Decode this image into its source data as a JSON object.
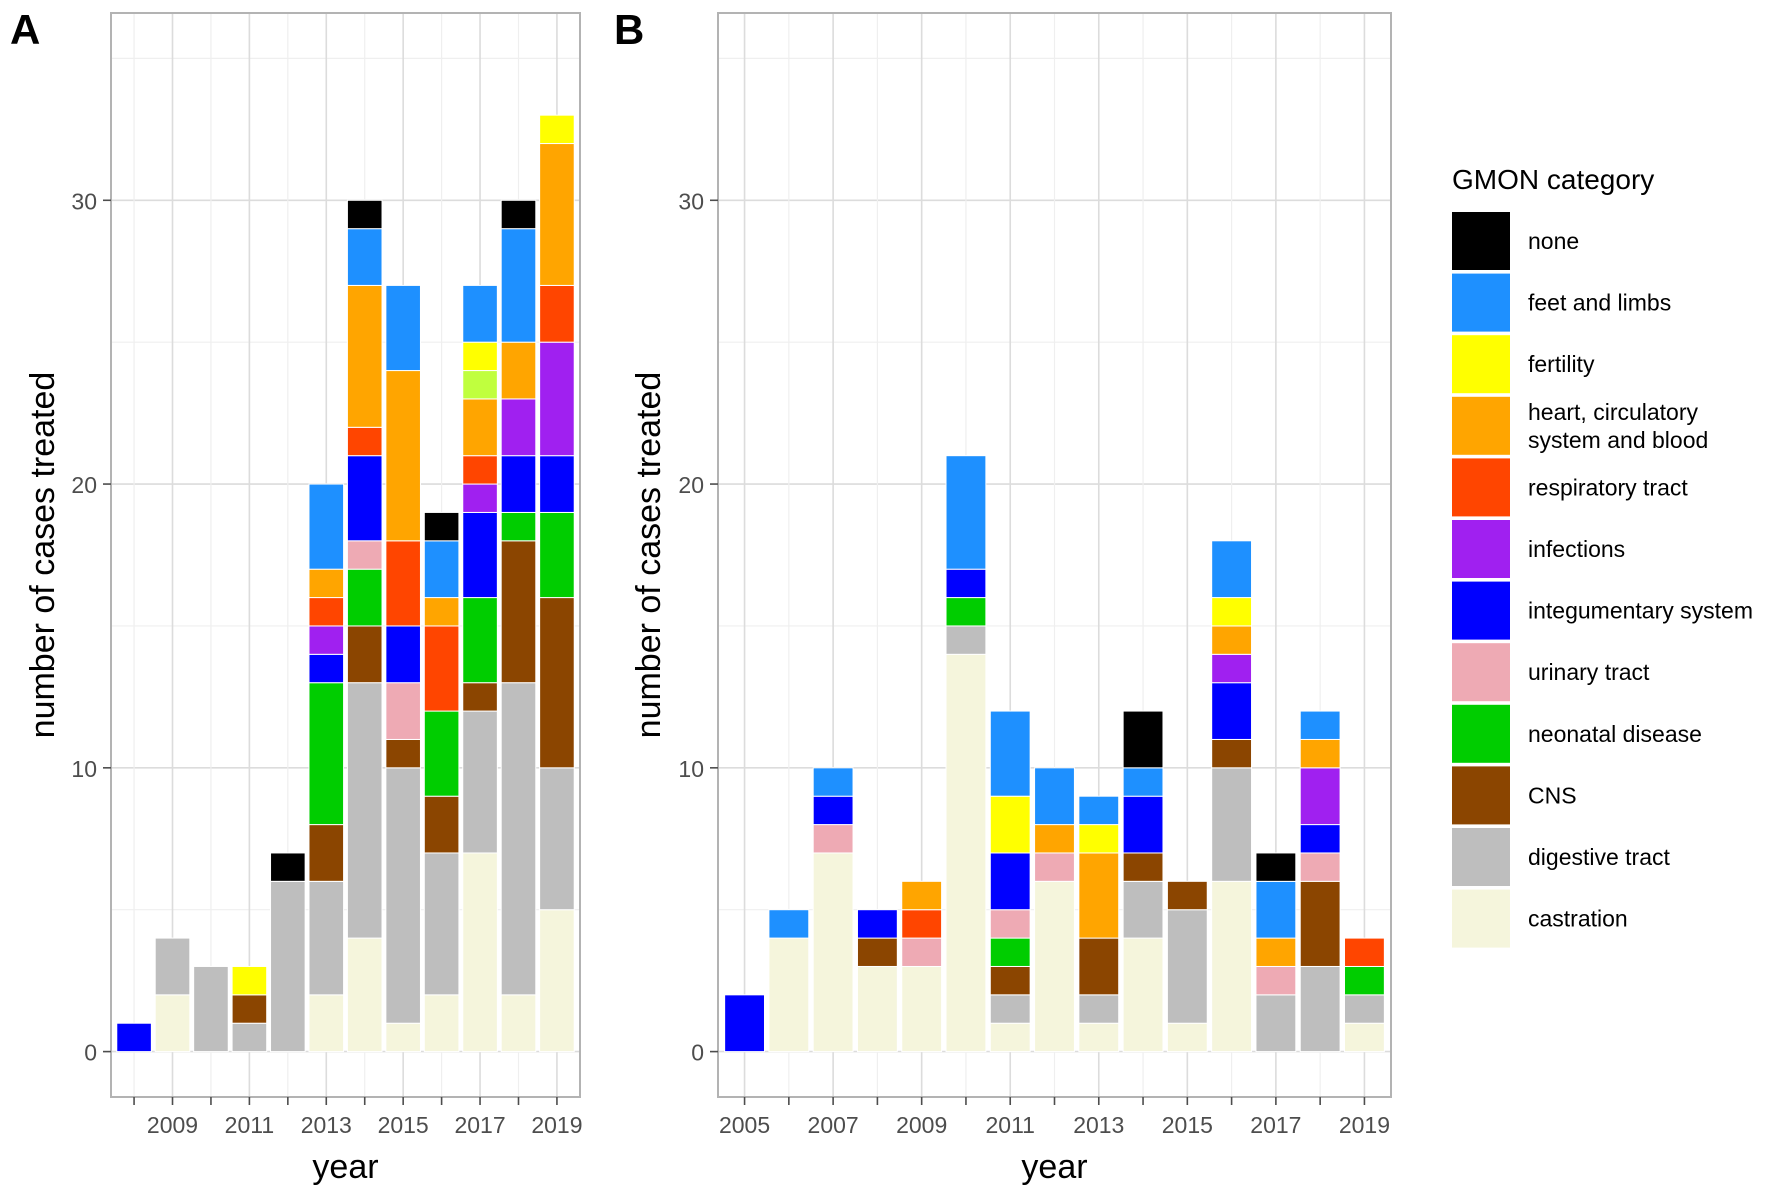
{
  "figure": {
    "panel_a_letter": "A",
    "panel_b_letter": "B"
  },
  "legend": {
    "title": "GMON category",
    "categories": [
      {
        "key": "none",
        "label": "none",
        "color": "#000000"
      },
      {
        "key": "feet",
        "label": "feet and limbs",
        "color": "#1e90ff"
      },
      {
        "key": "fertility",
        "label": "fertility",
        "color": "#ffff00"
      },
      {
        "key": "heart",
        "label": "heart, circulatory\nsystem and blood",
        "color": "#ffa500"
      },
      {
        "key": "resp",
        "label": "respiratory tract",
        "color": "#ff4500"
      },
      {
        "key": "infections",
        "label": "infections",
        "color": "#a020f0"
      },
      {
        "key": "integ",
        "label": "integumentary system",
        "color": "#0000ff"
      },
      {
        "key": "urinary",
        "label": "urinary tract",
        "color": "#eeaab4"
      },
      {
        "key": "neonatal",
        "label": "neonatal disease",
        "color": "#00cd00"
      },
      {
        "key": "cns",
        "label": "CNS",
        "color": "#8b4500"
      },
      {
        "key": "digestive",
        "label": "digestive tract",
        "color": "#bebebe"
      },
      {
        "key": "castration",
        "label": "castration",
        "color": "#f5f5dc"
      }
    ],
    "extra_colors": {
      "chartreuse": "#c0ff3e"
    }
  },
  "chart_data": [
    {
      "panel": "A",
      "type": "bar",
      "stacked": true,
      "xlabel": "year",
      "ylabel": "number of cases treated",
      "xlim": [
        2007.4,
        2019.6
      ],
      "ylim": [
        -1.6,
        36.6
      ],
      "x_ticks": [
        2009,
        2011,
        2013,
        2015,
        2017,
        2019
      ],
      "y_ticks": [
        0,
        10,
        20,
        30
      ],
      "stack_order": [
        "castration",
        "digestive",
        "cns",
        "neonatal",
        "urinary",
        "integ",
        "infections",
        "resp",
        "heart",
        "chartreuse",
        "fertility",
        "feet",
        "none"
      ],
      "bars": [
        {
          "x": 2008,
          "segments": {
            "integ": 1
          }
        },
        {
          "x": 2009,
          "segments": {
            "castration": 2,
            "digestive": 2
          }
        },
        {
          "x": 2010,
          "segments": {
            "digestive": 3
          }
        },
        {
          "x": 2011,
          "segments": {
            "digestive": 1,
            "cns": 1,
            "fertility": 1
          }
        },
        {
          "x": 2012,
          "segments": {
            "digestive": 6,
            "none": 1
          }
        },
        {
          "x": 2013,
          "segments": {
            "castration": 2,
            "digestive": 4,
            "cns": 2,
            "neonatal": 5,
            "integ": 1,
            "infections": 1,
            "resp": 1,
            "heart": 1,
            "feet": 3
          }
        },
        {
          "x": 2014,
          "segments": {
            "castration": 4,
            "digestive": 9,
            "cns": 2,
            "neonatal": 2,
            "urinary": 1,
            "integ": 3,
            "resp": 1,
            "heart": 5,
            "feet": 2,
            "none": 1
          }
        },
        {
          "x": 2015,
          "segments": {
            "castration": 1,
            "digestive": 9,
            "cns": 1,
            "urinary": 2,
            "integ": 2,
            "resp": 3,
            "heart": 6,
            "feet": 3
          }
        },
        {
          "x": 2016,
          "segments": {
            "castration": 2,
            "digestive": 5,
            "cns": 2,
            "neonatal": 3,
            "resp": 3,
            "heart": 1,
            "feet": 2,
            "none": 1
          }
        },
        {
          "x": 2017,
          "segments": {
            "castration": 7,
            "digestive": 5,
            "cns": 1,
            "neonatal": 3,
            "chartreuse": 1,
            "integ": 3,
            "infections": 1,
            "resp": 1,
            "heart": 2,
            "fertility": 1,
            "feet": 2
          }
        },
        {
          "x": 2018,
          "segments": {
            "castration": 2,
            "digestive": 11,
            "cns": 5,
            "neonatal": 1,
            "integ": 2,
            "infections": 2,
            "heart": 2,
            "feet": 4,
            "none": 1
          }
        },
        {
          "x": 2019,
          "segments": {
            "castration": 5,
            "digestive": 5,
            "cns": 6,
            "neonatal": 3,
            "integ": 2,
            "infections": 4,
            "resp": 2,
            "heart": 5,
            "fertility": 1
          }
        }
      ]
    },
    {
      "panel": "B",
      "type": "bar",
      "stacked": true,
      "xlabel": "year",
      "ylabel": "number of cases treated",
      "xlim": [
        2004.4,
        2019.6
      ],
      "ylim": [
        -1.6,
        36.6
      ],
      "x_ticks": [
        2005,
        2007,
        2009,
        2011,
        2013,
        2015,
        2017,
        2019
      ],
      "y_ticks": [
        0,
        10,
        20,
        30
      ],
      "stack_order": [
        "castration",
        "digestive",
        "cns",
        "neonatal",
        "urinary",
        "integ",
        "infections",
        "resp",
        "heart",
        "fertility",
        "feet",
        "none"
      ],
      "bars": [
        {
          "x": 2005,
          "segments": {
            "integ": 2
          }
        },
        {
          "x": 2006,
          "segments": {
            "castration": 4,
            "feet": 1
          }
        },
        {
          "x": 2007,
          "segments": {
            "castration": 7,
            "urinary": 1,
            "integ": 1,
            "feet": 1
          }
        },
        {
          "x": 2008,
          "segments": {
            "castration": 3,
            "cns": 1,
            "integ": 1
          }
        },
        {
          "x": 2009,
          "segments": {
            "castration": 3,
            "urinary": 1,
            "resp": 1,
            "heart": 1
          }
        },
        {
          "x": 2010,
          "segments": {
            "castration": 14,
            "digestive": 1,
            "neonatal": 1,
            "integ": 1,
            "feet": 4
          }
        },
        {
          "x": 2011,
          "segments": {
            "castration": 1,
            "digestive": 1,
            "cns": 1,
            "neonatal": 1,
            "urinary": 1,
            "integ": 2,
            "fertility": 2,
            "feet": 3
          }
        },
        {
          "x": 2012,
          "segments": {
            "castration": 6,
            "urinary": 1,
            "heart": 1,
            "feet": 2
          }
        },
        {
          "x": 2013,
          "segments": {
            "castration": 1,
            "digestive": 1,
            "cns": 2,
            "heart": 3,
            "fertility": 1,
            "feet": 1
          }
        },
        {
          "x": 2014,
          "segments": {
            "castration": 4,
            "digestive": 2,
            "cns": 1,
            "integ": 2,
            "feet": 1,
            "none": 2
          }
        },
        {
          "x": 2015,
          "segments": {
            "castration": 1,
            "digestive": 4,
            "cns": 1
          }
        },
        {
          "x": 2016,
          "segments": {
            "castration": 6,
            "digestive": 4,
            "cns": 1,
            "integ": 2,
            "infections": 1,
            "heart": 1,
            "fertility": 1,
            "feet": 2
          }
        },
        {
          "x": 2017,
          "segments": {
            "digestive": 2,
            "urinary": 1,
            "heart": 1,
            "feet": 2,
            "none": 1
          }
        },
        {
          "x": 2018,
          "segments": {
            "digestive": 3,
            "cns": 3,
            "urinary": 1,
            "integ": 1,
            "infections": 2,
            "heart": 1,
            "feet": 1
          }
        },
        {
          "x": 2019,
          "segments": {
            "castration": 1,
            "digestive": 1,
            "neonatal": 1,
            "resp": 1
          }
        }
      ]
    }
  ]
}
